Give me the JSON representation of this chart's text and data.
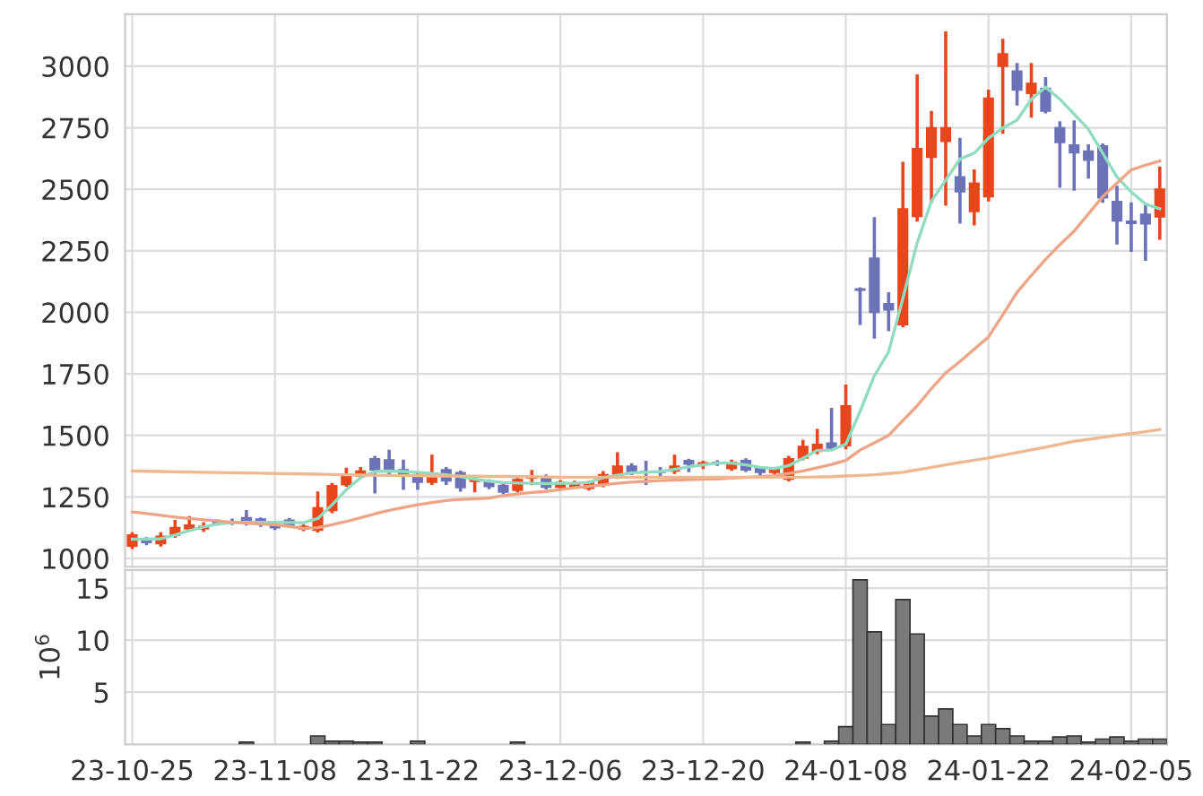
{
  "chart_data": [
    {
      "type": "candlestick",
      "categories": [
        null,
        null,
        null,
        null,
        null,
        null,
        null,
        null,
        null,
        null,
        null,
        null,
        null,
        null,
        null,
        null,
        null,
        null,
        null,
        null,
        null,
        null,
        null,
        null,
        null,
        null,
        null,
        null,
        null,
        null,
        null,
        null,
        null,
        null,
        null,
        null,
        null,
        null,
        null,
        null,
        null,
        null,
        null,
        null,
        null,
        null,
        null,
        null,
        null,
        null,
        null,
        null,
        null,
        null,
        null,
        null,
        null,
        null,
        null,
        null,
        null,
        null,
        null,
        null,
        null,
        null,
        null,
        null,
        null,
        null,
        null,
        null,
        null
      ],
      "ohlc": [
        [
          1050,
          1100,
          1045,
          1095
        ],
        [
          1075,
          1080,
          1060,
          1065
        ],
        [
          1060,
          1100,
          1055,
          1090
        ],
        [
          1095,
          1150,
          1090,
          1125
        ],
        [
          1120,
          1165,
          1115,
          1135
        ],
        [
          1120,
          1140,
          1115,
          1130
        ],
        [
          1150,
          1152,
          1140,
          1145
        ],
        [
          1150,
          1155,
          1142,
          1145
        ],
        [
          1165,
          1190,
          1140,
          1145
        ],
        [
          1160,
          1160,
          1135,
          1150
        ],
        [
          1135,
          1137,
          1122,
          1125
        ],
        [
          1155,
          1158,
          1133,
          1135
        ],
        [
          1120,
          1132,
          1117,
          1130
        ],
        [
          1115,
          1265,
          1112,
          1205
        ],
        [
          1195,
          1300,
          1190,
          1295
        ],
        [
          1300,
          1362,
          1298,
          1340
        ],
        [
          1335,
          1365,
          1330,
          1355
        ],
        [
          1405,
          1410,
          1270,
          1360
        ],
        [
          1400,
          1435,
          1340,
          1355
        ],
        [
          1360,
          1395,
          1285,
          1335
        ],
        [
          1340,
          1345,
          1285,
          1310
        ],
        [
          1310,
          1415,
          1305,
          1338
        ],
        [
          1360,
          1365,
          1305,
          1315
        ],
        [
          1348,
          1350,
          1278,
          1288
        ],
        [
          1313,
          1322,
          1275,
          1320
        ],
        [
          1310,
          1315,
          1288,
          1292
        ],
        [
          1296,
          1298,
          1268,
          1270
        ],
        [
          1277,
          1328,
          1275,
          1320
        ],
        [
          1326,
          1353,
          1304,
          1330
        ],
        [
          1330,
          1335,
          1287,
          1290
        ],
        [
          1290,
          1312,
          1285,
          1308
        ],
        [
          1293,
          1309,
          1290,
          1305
        ],
        [
          1285,
          1308,
          1282,
          1305
        ],
        [
          1300,
          1348,
          1296,
          1340
        ],
        [
          1335,
          1425,
          1330,
          1375
        ],
        [
          1375,
          1380,
          1345,
          1350
        ],
        [
          1352,
          1390,
          1305,
          1350
        ],
        [
          1352,
          1365,
          1333,
          1350
        ],
        [
          1355,
          1415,
          1350,
          1375
        ],
        [
          1397,
          1398,
          1357,
          1383
        ],
        [
          1385,
          1390,
          1370,
          1388
        ],
        [
          1390,
          1392,
          1382,
          1385
        ],
        [
          1365,
          1395,
          1362,
          1390
        ],
        [
          1397,
          1400,
          1358,
          1360
        ],
        [
          1365,
          1367,
          1340,
          1350
        ],
        [
          1350,
          1365,
          1348,
          1363
        ],
        [
          1322,
          1410,
          1320,
          1405
        ],
        [
          1408,
          1475,
          1405,
          1455
        ],
        [
          1435,
          1520,
          1430,
          1463
        ],
        [
          1468,
          1605,
          1445,
          1448
        ],
        [
          1458,
          1700,
          1450,
          1620
        ],
        [
          2095,
          2095,
          1955,
          2090
        ],
        [
          2220,
          2380,
          1900,
          2000
        ],
        [
          2035,
          2075,
          1930,
          2010
        ],
        [
          1950,
          2605,
          1945,
          2420
        ],
        [
          2390,
          2960,
          2375,
          2665
        ],
        [
          2630,
          2812,
          2452,
          2750
        ],
        [
          2695,
          3135,
          2440,
          2750
        ],
        [
          2550,
          2703,
          2367,
          2490
        ],
        [
          2410,
          2574,
          2360,
          2525
        ],
        [
          2470,
          2898,
          2457,
          2870
        ],
        [
          3000,
          3105,
          2732,
          3050
        ],
        [
          2980,
          3007,
          2847,
          2903
        ],
        [
          2890,
          3007,
          2798,
          2930
        ],
        [
          2910,
          2949,
          2815,
          2818
        ],
        [
          2750,
          2770,
          2513,
          2690
        ],
        [
          2680,
          2774,
          2501,
          2648
        ],
        [
          2655,
          2676,
          2550,
          2618
        ],
        [
          2676,
          2680,
          2452,
          2465
        ],
        [
          2450,
          2508,
          2282,
          2372
        ],
        [
          2370,
          2440,
          2252,
          2362
        ],
        [
          2398,
          2428,
          2216,
          2360
        ],
        [
          2388,
          2586,
          2301,
          2500
        ]
      ],
      "colors": [
        "#e8461c",
        "#6b72b8",
        "#e8461c",
        "#e8461c",
        "#e8461c",
        "#e8461c",
        "#6b72b8",
        "#6b72b8",
        "#6b72b8",
        "#6b72b8",
        "#6b72b8",
        "#6b72b8",
        "#e8461c",
        "#e8461c",
        "#e8461c",
        "#e8461c",
        "#e8461c",
        "#6b72b8",
        "#6b72b8",
        "#6b72b8",
        "#6b72b8",
        "#e8461c",
        "#6b72b8",
        "#6b72b8",
        "#e8461c",
        "#6b72b8",
        "#6b72b8",
        "#e8461c",
        "#e8461c",
        "#6b72b8",
        "#e8461c",
        "#e8461c",
        "#e8461c",
        "#e8461c",
        "#e8461c",
        "#6b72b8",
        "#6b72b8",
        "#6b72b8",
        "#e8461c",
        "#6b72b8",
        "#e8461c",
        "#6b72b8",
        "#e8461c",
        "#6b72b8",
        "#6b72b8",
        "#e8461c",
        "#e8461c",
        "#e8461c",
        "#e8461c",
        "#6b72b8",
        "#e8461c",
        "#6b72b8",
        "#6b72b8",
        "#6b72b8",
        "#e8461c",
        "#e8461c",
        "#e8461c",
        "#e8461c",
        "#6b72b8",
        "#e8461c",
        "#e8461c",
        "#e8461c",
        "#6b72b8",
        "#e8461c",
        "#6b72b8",
        "#6b72b8",
        "#6b72b8",
        "#6b72b8",
        "#6b72b8",
        "#6b72b8",
        "#6b72b8",
        "#6b72b8",
        "#e8461c"
      ],
      "series": [
        {
          "type": "line",
          "color": "#8fdcc0",
          "values": [
            1078,
            1078,
            1080,
            1095,
            1113,
            1128,
            1140,
            1145,
            1147,
            1147,
            1147,
            1146,
            1145,
            1162,
            1218,
            1279,
            1328,
            1353,
            1355,
            1353,
            1350,
            1345,
            1340,
            1333,
            1322,
            1314,
            1308,
            1306,
            1305,
            1304,
            1305,
            1305,
            1309,
            1328,
            1338,
            1348,
            1350,
            1353,
            1362,
            1372,
            1380,
            1387,
            1387,
            1380,
            1370,
            1365,
            1377,
            1407,
            1439,
            1440,
            1464,
            1597,
            1742,
            1839,
            2057,
            2282,
            2452,
            2537,
            2623,
            2647,
            2708,
            2749,
            2781,
            2866,
            2915,
            2866,
            2805,
            2744,
            2647,
            2550,
            2489,
            2440,
            2421
          ]
        },
        {
          "type": "line",
          "color": "#eea585",
          "values": [
            1189,
            1182,
            1175,
            1168,
            1162,
            1157,
            1152,
            1147,
            1143,
            1140,
            1137,
            1130,
            1122,
            1125,
            1137,
            1150,
            1165,
            1181,
            1195,
            1207,
            1218,
            1227,
            1235,
            1240,
            1242,
            1245,
            1255,
            1262,
            1268,
            1272,
            1280,
            1287,
            1293,
            1299,
            1305,
            1310,
            1313,
            1316,
            1318,
            1320,
            1322,
            1323,
            1326,
            1329,
            1332,
            1336,
            1345,
            1355,
            1368,
            1382,
            1398,
            1440,
            1470,
            1500,
            1560,
            1620,
            1690,
            1754,
            1800,
            1850,
            1900,
            1990,
            2081,
            2150,
            2215,
            2275,
            2330,
            2400,
            2470,
            2525,
            2579,
            2598,
            2615
          ]
        },
        {
          "type": "line",
          "color": "#f0b88e",
          "values": [
            1355,
            1354,
            1353,
            1352,
            1351,
            1350,
            1349,
            1348,
            1347,
            1346,
            1345,
            1344,
            1343,
            1342,
            1341,
            1340,
            1339,
            1338,
            1337,
            1336,
            1336,
            1335,
            1335,
            1334,
            1334,
            1333,
            1333,
            1332,
            1332,
            1331,
            1330,
            1330,
            1330,
            1330,
            1330,
            1330,
            1330,
            1330,
            1330,
            1330,
            1330,
            1330,
            1330,
            1330,
            1330,
            1330,
            1330,
            1330,
            1331,
            1332,
            1335,
            1337,
            1340,
            1345,
            1350,
            1360,
            1370,
            1380,
            1390,
            1399,
            1408,
            1419,
            1430,
            1441,
            1452,
            1464,
            1476,
            1484,
            1492,
            1500,
            1507,
            1515,
            1524
          ]
        }
      ],
      "ylim": [
        966,
        3211
      ],
      "yticks": [
        1000,
        1250,
        1500,
        1750,
        2000,
        2250,
        2500,
        2750,
        3000
      ],
      "grid": true,
      "tick_labels": "y"
    },
    {
      "type": "bar",
      "categories": [
        "23-10-25",
        null,
        null,
        null,
        null,
        null,
        null,
        null,
        null,
        null,
        "23-11-08",
        null,
        null,
        null,
        null,
        null,
        null,
        null,
        null,
        null,
        "23-11-22",
        null,
        null,
        null,
        null,
        null,
        null,
        null,
        null,
        null,
        "23-12-06",
        null,
        null,
        null,
        null,
        null,
        null,
        null,
        null,
        null,
        "23-12-20",
        null,
        null,
        null,
        null,
        null,
        null,
        null,
        null,
        null,
        "24-01-08",
        null,
        null,
        null,
        null,
        null,
        null,
        null,
        null,
        null,
        "24-01-22",
        null,
        null,
        null,
        null,
        null,
        null,
        null,
        null,
        null,
        "24-02-05",
        null,
        null
      ],
      "values": [
        0,
        0,
        0,
        0,
        0,
        0,
        0,
        0,
        0.2,
        0,
        0,
        0,
        0,
        0.8,
        0.3,
        0.3,
        0.2,
        0.2,
        0,
        0,
        0.3,
        0,
        0,
        0,
        0,
        0,
        0,
        0.2,
        0,
        0,
        0,
        0,
        0,
        0,
        0,
        0,
        0,
        0,
        0,
        0,
        0,
        0,
        0,
        0,
        0,
        0,
        0,
        0.2,
        0,
        0.3,
        1.7,
        15.8,
        10.8,
        1.9,
        13.9,
        10.6,
        2.7,
        3.4,
        1.9,
        0.8,
        1.9,
        1.5,
        0.8,
        0.3,
        0.3,
        0.7,
        0.8,
        0.2,
        0.5,
        0.7,
        0.3,
        0.5,
        0.5
      ],
      "color": "#7a7a7a",
      "ylabel": "10$^{6}$",
      "ylim": [
        0,
        16.75
      ],
      "yticks": [
        5,
        10,
        15
      ],
      "grid": true
    }
  ]
}
